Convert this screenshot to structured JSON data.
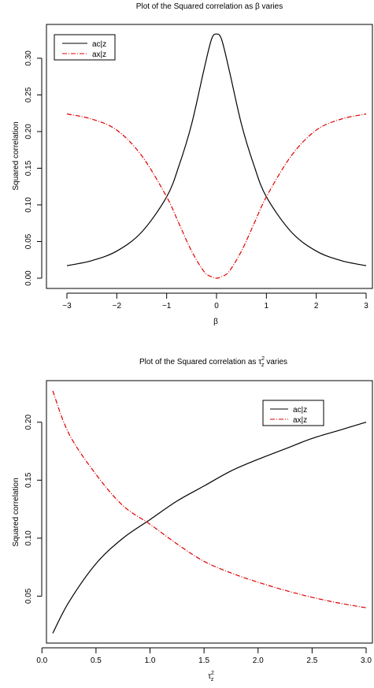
{
  "chart_data": [
    {
      "type": "line",
      "title": "Plot of the Squared correlation as β varies",
      "xlabel": "β",
      "ylabel": "Squared correlation",
      "xlim": [
        -3,
        3
      ],
      "ylim": [
        0,
        0.33
      ],
      "x_ticks": [
        "−3",
        "−2",
        "−1",
        "0",
        "1",
        "2",
        "3"
      ],
      "y_ticks": [
        "0.00",
        "0.05",
        "0.10",
        "0.15",
        "0.20",
        "0.25",
        "0.30"
      ],
      "legend_position": "top-left",
      "series": [
        {
          "name": "ac|z",
          "color": "#000000",
          "style": "solid",
          "x": [
            -3,
            -2.5,
            -2,
            -1.5,
            -1,
            -0.75,
            -0.5,
            -0.25,
            -0.1,
            0,
            0.1,
            0.25,
            0.5,
            0.75,
            1,
            1.5,
            2,
            2.5,
            3
          ],
          "y": [
            0.017,
            0.024,
            0.037,
            0.063,
            0.111,
            0.154,
            0.21,
            0.285,
            0.326,
            0.333,
            0.326,
            0.285,
            0.21,
            0.154,
            0.111,
            0.063,
            0.037,
            0.024,
            0.017
          ]
        },
        {
          "name": "ax|z",
          "color": "#dd0000",
          "style": "dashdot",
          "x": [
            -3,
            -2.5,
            -2,
            -1.5,
            -1,
            -0.75,
            -0.5,
            -0.25,
            -0.1,
            0,
            0.1,
            0.25,
            0.5,
            0.75,
            1,
            1.5,
            2,
            2.5,
            3
          ],
          "y": [
            0.224,
            0.217,
            0.202,
            0.167,
            0.111,
            0.074,
            0.037,
            0.009,
            0.002,
            0,
            0.002,
            0.009,
            0.037,
            0.074,
            0.111,
            0.167,
            0.202,
            0.217,
            0.224
          ]
        }
      ]
    },
    {
      "type": "line",
      "title_prefix": "Plot of the Squared correlation as ",
      "title_symbol": "τ",
      "title_sup": "2",
      "title_sub": "z",
      "title_suffix": " varies",
      "xlabel_symbol": "τ",
      "xlabel_sup": "2",
      "xlabel_sub": "z",
      "ylabel": "Squared correlation",
      "xlim": [
        0.1,
        3.0
      ],
      "ylim": [
        0.017,
        0.227
      ],
      "x_ticks": [
        "0.0",
        "0.5",
        "1.0",
        "1.5",
        "2.0",
        "2.5",
        "3.0"
      ],
      "x_tick_values": [
        0.0,
        0.5,
        1.0,
        1.5,
        2.0,
        2.5,
        3.0
      ],
      "y_ticks": [
        "0.05",
        "0.10",
        "0.15",
        "0.20"
      ],
      "y_tick_values": [
        0.05,
        0.1,
        0.15,
        0.2
      ],
      "legend_position": "top-right",
      "series": [
        {
          "name": "ac|z",
          "color": "#000000",
          "style": "solid",
          "x": [
            0.1,
            0.25,
            0.5,
            0.75,
            1.0,
            1.25,
            1.5,
            1.75,
            2.0,
            2.25,
            2.5,
            2.75,
            3.0
          ],
          "y": [
            0.018,
            0.045,
            0.078,
            0.1,
            0.116,
            0.132,
            0.145,
            0.158,
            0.168,
            0.177,
            0.186,
            0.193,
            0.2
          ]
        },
        {
          "name": "ax|z",
          "color": "#dd0000",
          "style": "dashdot",
          "x": [
            0.1,
            0.25,
            0.5,
            0.75,
            1.0,
            1.25,
            1.5,
            1.75,
            2.0,
            2.25,
            2.5,
            2.75,
            3.0
          ],
          "y": [
            0.227,
            0.19,
            0.155,
            0.128,
            0.112,
            0.095,
            0.08,
            0.07,
            0.062,
            0.055,
            0.049,
            0.044,
            0.04
          ]
        }
      ]
    }
  ]
}
